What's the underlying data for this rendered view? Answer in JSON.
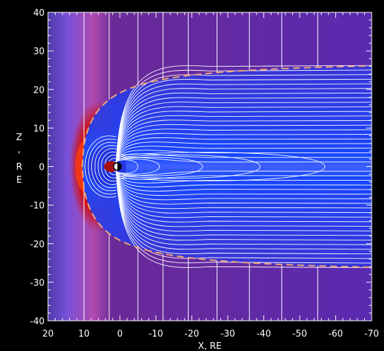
{
  "chart_data": {
    "type": "heatmap",
    "title": "",
    "xlabel": "X, RE",
    "ylabel_chars": [
      "Z",
      ",",
      "R",
      "E"
    ],
    "xlim": [
      20,
      -70
    ],
    "ylim": [
      -40,
      40
    ],
    "x_ticks": [
      20,
      10,
      0,
      -10,
      -20,
      -30,
      -40,
      -50,
      -60,
      -70
    ],
    "y_ticks": [
      40,
      30,
      20,
      10,
      0,
      -10,
      -20,
      -30,
      -40
    ],
    "x_tick_labels": [
      "20",
      "10",
      "0",
      "-10",
      "-20",
      "-30",
      "-40",
      "-50",
      "-60",
      "-70"
    ],
    "y_tick_labels": [
      "40",
      "30",
      "20",
      "10",
      "0",
      "-10",
      "-20",
      "-30",
      "-40"
    ],
    "background_color": "#5a2ab0",
    "sheath_color": "#ff2200",
    "earth_center": [
      1,
      0
    ],
    "magnetopause_tail_radius": 28,
    "magnetopause_nose_x": 10.5,
    "magnetopause_color": "#f0a878",
    "field_line_color": "#ffffff",
    "solar_wind_lines_x": [
      10,
      3,
      -5,
      -12,
      -19,
      -27,
      -36,
      -45,
      -55
    ]
  }
}
